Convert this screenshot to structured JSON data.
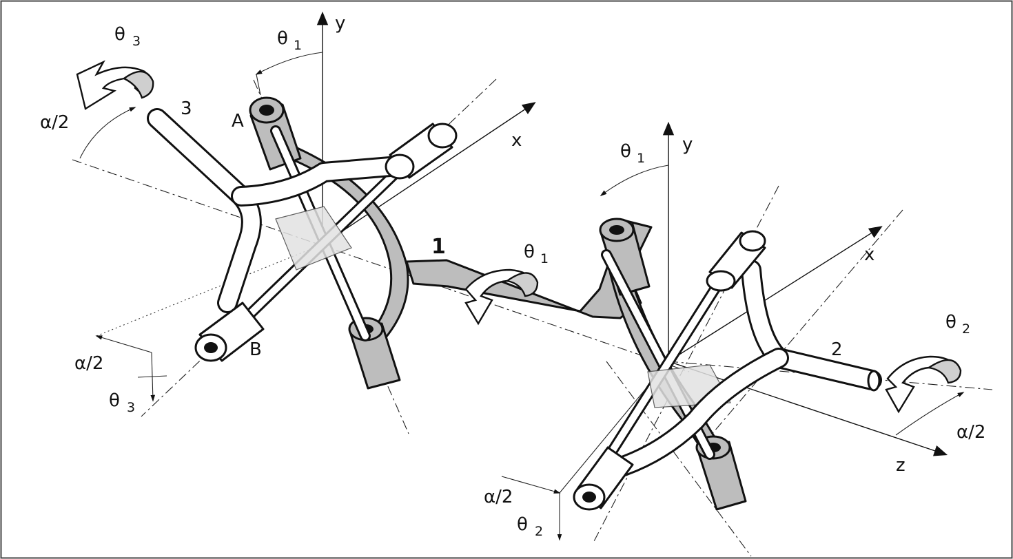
{
  "labels": {
    "y_left": "y",
    "x_left": "x",
    "theta1_left": "θ",
    "theta1_left_sub": "1",
    "theta3_top": "θ",
    "theta3_top_sub": "3",
    "alpha_left_top": "α/2",
    "part3": "3",
    "pointA": "A",
    "pointB": "B",
    "alpha_left_bottom": "α/2",
    "theta3_bottom": "θ",
    "theta3_bottom_sub": "3",
    "part1": "1",
    "theta1_mid": "θ",
    "theta1_mid_sub": "1",
    "y_right": "y",
    "theta1_right": "θ",
    "theta1_right_sub": "1",
    "x_right": "x",
    "theta2_right": "θ",
    "theta2_right_sub": "2",
    "part2": "2",
    "alpha_right": "α/2",
    "z_right": "z",
    "alpha_right_bottom": "α/2",
    "theta2_bottom": "θ",
    "theta2_bottom_sub": "2"
  },
  "colors": {
    "shaded_part": "#bdbdbd",
    "line": "#111111",
    "background": "#ffffff"
  }
}
